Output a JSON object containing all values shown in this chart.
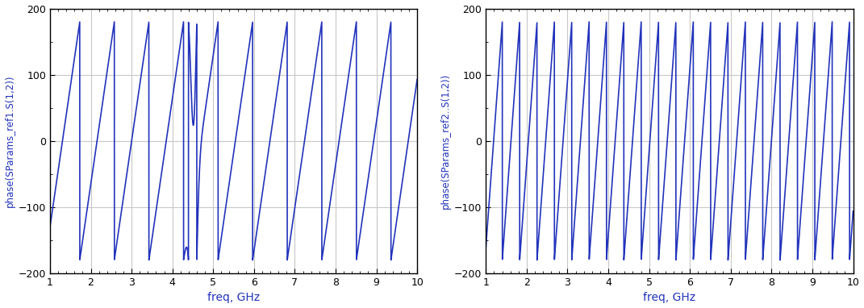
{
  "freq_start": 1.0,
  "freq_stop": 10.0,
  "freq_points": 5000,
  "ylim": [
    -200,
    200
  ],
  "yticks": [
    -200,
    -100,
    0,
    100,
    200
  ],
  "xticks": [
    1,
    2,
    3,
    4,
    5,
    6,
    7,
    8,
    9,
    10
  ],
  "xlabel": "freq, GHz",
  "ylabel1": "phase(SParams_ref1.S(1,2))",
  "ylabel2": "phase(SParams_ref2..S(1,2))",
  "line_color": "#2233bb",
  "line_width": 1.2,
  "background_color": "#ffffff",
  "grid_color": "#c8c8c8",
  "label_color": "#2233bb",
  "phase_slope1": 1.18,
  "phase_slope2": 2.35,
  "phase_init1": -130.0,
  "phase_init2": -160.0
}
